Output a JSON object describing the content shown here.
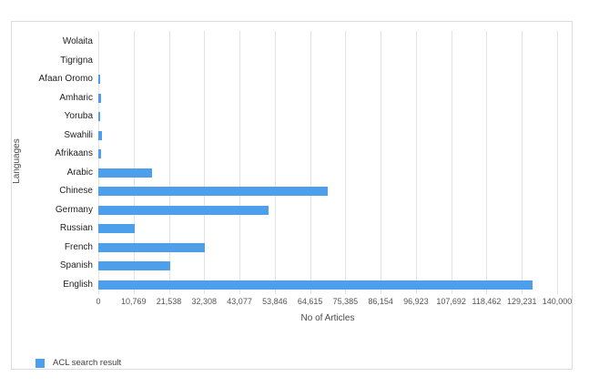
{
  "chart_data": {
    "type": "bar",
    "orientation": "horizontal",
    "title": "",
    "xlabel": "No of Articles",
    "ylabel": "Languages",
    "legend": {
      "label": "ACL search result",
      "position": "bottom-left"
    },
    "categories_top_to_bottom": [
      "Wolaita",
      "Tigrigna",
      "Afaan Oromo",
      "Amharic",
      "Yoruba",
      "Swahili",
      "Afrikaans",
      "Arabic",
      "Chinese",
      "Germany",
      "Russian",
      "French",
      "Spanish",
      "English"
    ],
    "series": [
      {
        "name": "ACL search result",
        "values": [
          0,
          0,
          550,
          900,
          650,
          1100,
          900,
          16300,
          70000,
          52000,
          11000,
          32500,
          21900,
          132400
        ]
      }
    ],
    "xlim": [
      0,
      140000
    ],
    "x_tick_values": [
      0,
      10769,
      21538,
      32308,
      43077,
      53846,
      64615,
      75385,
      86154,
      96923,
      107692,
      118462,
      129231,
      140000
    ],
    "x_tick_labels": [
      "0",
      "10,769",
      "21,538",
      "32,308",
      "43,077",
      "53,846",
      "64,615",
      "75,385",
      "86,154",
      "96,923",
      "107,692",
      "118,462",
      "129,231",
      "140,000"
    ],
    "grid": "vertical-only",
    "bar_color": "#4D9FEC"
  },
  "style": {
    "gridline_color": "#E3E3E3",
    "frame_border_color": "#DCDCDC",
    "tick_text_color": "#555555",
    "category_text_color": "#1F1F1F",
    "axis_title_color": "#4A4A4A",
    "legend_text_color": "#3D3D3D",
    "background_color": "#FFFFFF"
  }
}
